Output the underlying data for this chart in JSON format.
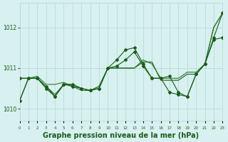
{
  "background_color": "#d8f0f0",
  "grid_color": "#b0d8d8",
  "line_color_dark": "#1a5c1a",
  "line_color_mid": "#2d7a2d",
  "xlabel": "Graphe pression niveau de la mer (hPa)",
  "xlabel_fontsize": 7,
  "ylabel_ticks": [
    1010,
    1011,
    1012
  ],
  "xlim": [
    0,
    23
  ],
  "ylim": [
    1009.7,
    1012.6
  ],
  "series1": [
    1010.2,
    1010.75,
    1010.75,
    1010.55,
    1010.35,
    1010.6,
    1010.6,
    1010.5,
    1010.45,
    1010.55,
    1011.0,
    1011.0,
    1011.0,
    1011.0,
    1011.15,
    1011.15,
    1010.7,
    1010.7,
    1010.7,
    1010.85,
    1010.85,
    1011.1,
    1012.0,
    1012.35
  ],
  "series2": [
    1010.75,
    1010.75,
    1010.75,
    1010.5,
    1010.3,
    1010.6,
    1010.55,
    1010.5,
    1010.45,
    1010.5,
    1011.0,
    1011.05,
    1011.2,
    1011.4,
    1011.05,
    1010.75,
    1010.75,
    1010.8,
    1010.4,
    1010.3,
    1010.85,
    1011.1,
    1011.7,
    1011.75
  ],
  "series3": [
    1010.75,
    1010.75,
    1010.8,
    1010.6,
    1010.6,
    1010.65,
    1010.55,
    1010.45,
    1010.45,
    1010.55,
    1011.0,
    1011.0,
    1011.0,
    1011.0,
    1011.2,
    1011.1,
    1010.75,
    1010.75,
    1010.75,
    1010.9,
    1010.9,
    1011.1,
    1012.0,
    1012.35
  ],
  "series4": [
    1010.2,
    1010.75,
    1010.75,
    1010.55,
    1010.3,
    1010.6,
    1010.6,
    1010.5,
    1010.45,
    1010.5,
    1011.0,
    1011.2,
    1011.45,
    1011.5,
    1011.1,
    1010.75,
    1010.75,
    1010.4,
    1010.35,
    1010.3,
    1010.85,
    1011.1,
    1011.75,
    1012.35
  ]
}
